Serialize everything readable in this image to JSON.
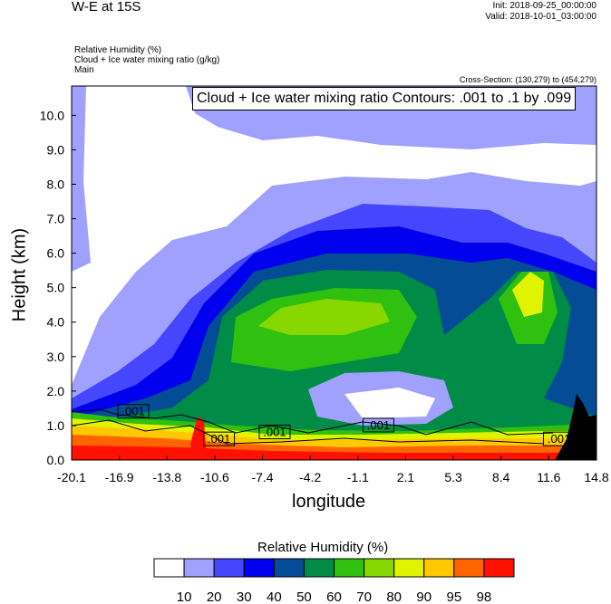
{
  "header": {
    "title": "W-E at 15S",
    "init": "Init: 2018-09-25_00:00:00",
    "valid": "Valid: 2018-10-01_03:00:00",
    "field1": "Relative Humidity   (%)",
    "field2": "Cloud + Ice water mixing ratio   (g/kg)",
    "field3": "Main",
    "cross_section": "Cross-Section: (130,279) to (454,279)"
  },
  "chart_data": {
    "type": "heatmap",
    "title": "W-E at 15S",
    "xlabel": "longitude",
    "ylabel": "Height (km)",
    "xticks": [
      "-20.1",
      "-16.9",
      "-13.8",
      "-10.6",
      "-7.4",
      "-4.2",
      "-1.1",
      "2.1",
      "5.3",
      "8.4",
      "11.6",
      "14.8"
    ],
    "yticks": [
      "0.0",
      "1.0",
      "2.0",
      "3.0",
      "4.0",
      "5.0",
      "6.0",
      "7.0",
      "8.0",
      "9.0",
      "10.0"
    ],
    "xlim": [
      -20.1,
      14.8
    ],
    "ylim": [
      0,
      10.85
    ],
    "contour_info": "Cloud + Ice water mixing ratio Contours: .001 to .1 by .099",
    "contour_labels": [
      {
        "text": ".001",
        "lon": -16.0,
        "height": 1.4
      },
      {
        "text": ".001",
        "lon": -10.3,
        "height": 0.6
      },
      {
        "text": ".001",
        "lon": -6.6,
        "height": 0.8
      },
      {
        "text": ".001",
        "lon": 0.3,
        "height": 1.0
      },
      {
        "text": ".001",
        "lon": 12.3,
        "height": 0.6
      }
    ],
    "colorbar": {
      "title": "Relative Humidity  (%)",
      "levels": [
        "10",
        "20",
        "30",
        "40",
        "50",
        "60",
        "70",
        "80",
        "90",
        "95",
        "98"
      ],
      "colors": [
        "#ffffff",
        "#a0a0ff",
        "#4646ff",
        "#0000ee",
        "#044c96",
        "#008c46",
        "#30c010",
        "#88d800",
        "#e0f400",
        "#ffc800",
        "#ff6400",
        "#ff1000"
      ]
    }
  }
}
